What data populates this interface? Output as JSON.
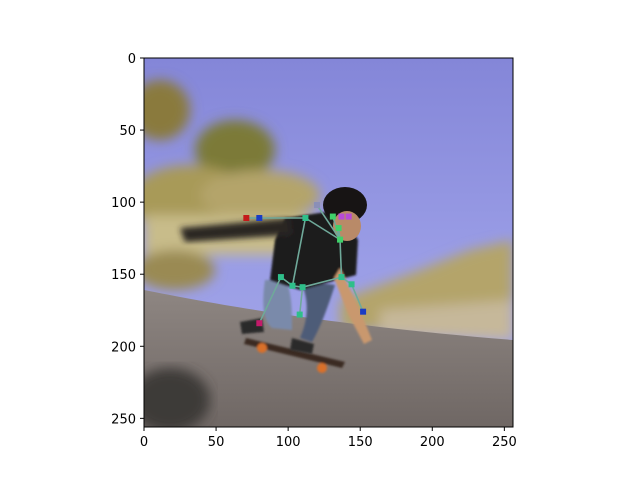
{
  "axes": {
    "xlim": [
      0,
      256
    ],
    "ylim": [
      256,
      0
    ],
    "x_ticks": [
      0,
      50,
      100,
      150,
      200,
      250
    ],
    "y_ticks": [
      0,
      50,
      100,
      150,
      200,
      250
    ],
    "x_tick_labels": [
      "0",
      "50",
      "100",
      "150",
      "200",
      "250"
    ],
    "y_tick_labels": [
      "0",
      "50",
      "100",
      "150",
      "200",
      "250"
    ],
    "grid": false
  },
  "image": {
    "subject": "skateboarder leaning into a downhill turn, motion-blurred background",
    "sky_color": "#8c8fe0",
    "road_color": "#7d7672"
  },
  "pose": {
    "skeleton_color": "#6fa99a",
    "keypoints": [
      {
        "name": "head-top",
        "x": 120,
        "y": 102,
        "color": "#8a8fb8"
      },
      {
        "name": "right-eye",
        "x": 137,
        "y": 110,
        "color": "#b84ad9"
      },
      {
        "name": "left-eye",
        "x": 142,
        "y": 110,
        "color": "#b84ad9"
      },
      {
        "name": "nose",
        "x": 135,
        "y": 118,
        "color": "#3fd06a"
      },
      {
        "name": "ear",
        "x": 131,
        "y": 110,
        "color": "#3fd06a"
      },
      {
        "name": "neck",
        "x": 136,
        "y": 126,
        "color": "#3fd06a"
      },
      {
        "name": "right-shoulder",
        "x": 112,
        "y": 111,
        "color": "#2fbf8a"
      },
      {
        "name": "left-shoulder",
        "x": 137,
        "y": 152,
        "color": "#2fbf8a"
      },
      {
        "name": "right-elbow",
        "x": 80,
        "y": 111,
        "color": "#1a3cc4"
      },
      {
        "name": "right-wrist",
        "x": 71,
        "y": 111,
        "color": "#c41a1a"
      },
      {
        "name": "left-elbow",
        "x": 144,
        "y": 157,
        "color": "#2fbf8a"
      },
      {
        "name": "left-wrist",
        "x": 152,
        "y": 176,
        "color": "#1a3cc4"
      },
      {
        "name": "right-hip",
        "x": 103,
        "y": 158,
        "color": "#2fbf8a"
      },
      {
        "name": "left-hip",
        "x": 110,
        "y": 159,
        "color": "#2fbf8a"
      },
      {
        "name": "right-knee",
        "x": 95,
        "y": 152,
        "color": "#2fbf8a"
      },
      {
        "name": "right-ankle",
        "x": 80,
        "y": 184,
        "color": "#c41a6a"
      },
      {
        "name": "left-knee",
        "x": 108,
        "y": 178,
        "color": "#2fbf8a"
      }
    ],
    "edges": [
      [
        "head-top",
        "neck"
      ],
      [
        "neck",
        "right-shoulder"
      ],
      [
        "neck",
        "left-shoulder"
      ],
      [
        "right-shoulder",
        "right-elbow"
      ],
      [
        "right-elbow",
        "right-wrist"
      ],
      [
        "right-shoulder",
        "right-hip"
      ],
      [
        "left-shoulder",
        "left-hip"
      ],
      [
        "left-shoulder",
        "left-elbow"
      ],
      [
        "left-elbow",
        "left-wrist"
      ],
      [
        "right-hip",
        "left-hip"
      ],
      [
        "right-hip",
        "right-knee"
      ],
      [
        "right-knee",
        "right-ankle"
      ],
      [
        "left-hip",
        "left-knee"
      ],
      [
        "nose",
        "neck"
      ],
      [
        "ear",
        "neck"
      ]
    ]
  }
}
